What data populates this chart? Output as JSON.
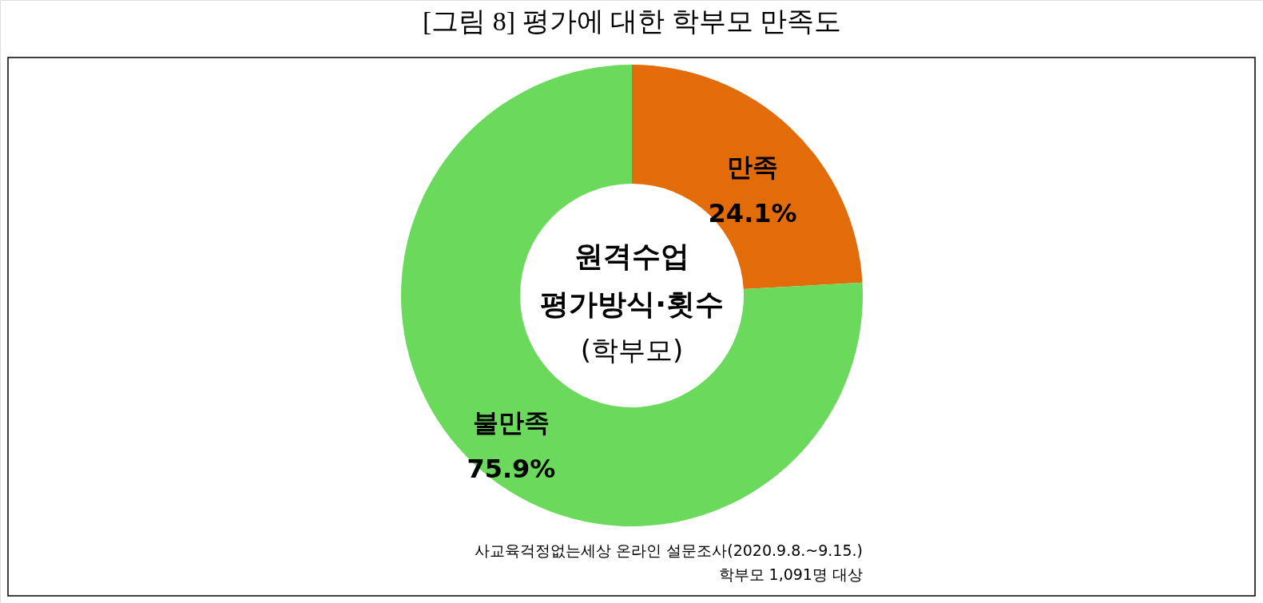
{
  "chart_data": {
    "type": "donut",
    "title": "[그림 8] 평가에 대한 학부모 만족도",
    "categories": [
      "만족",
      "불만족"
    ],
    "values": [
      24.1,
      75.9
    ],
    "colors": [
      "#e36c0a",
      "#6ad95c"
    ],
    "value_labels": [
      "24.1%",
      "75.9%"
    ],
    "annotations": [
      "원격수업",
      "평가방식·횟수",
      "(학부모)",
      "사교육걱정없는세상 온라인 설문조사(2020.9.8.~9.15.)",
      "학부모 1,091명 대상"
    ]
  }
}
